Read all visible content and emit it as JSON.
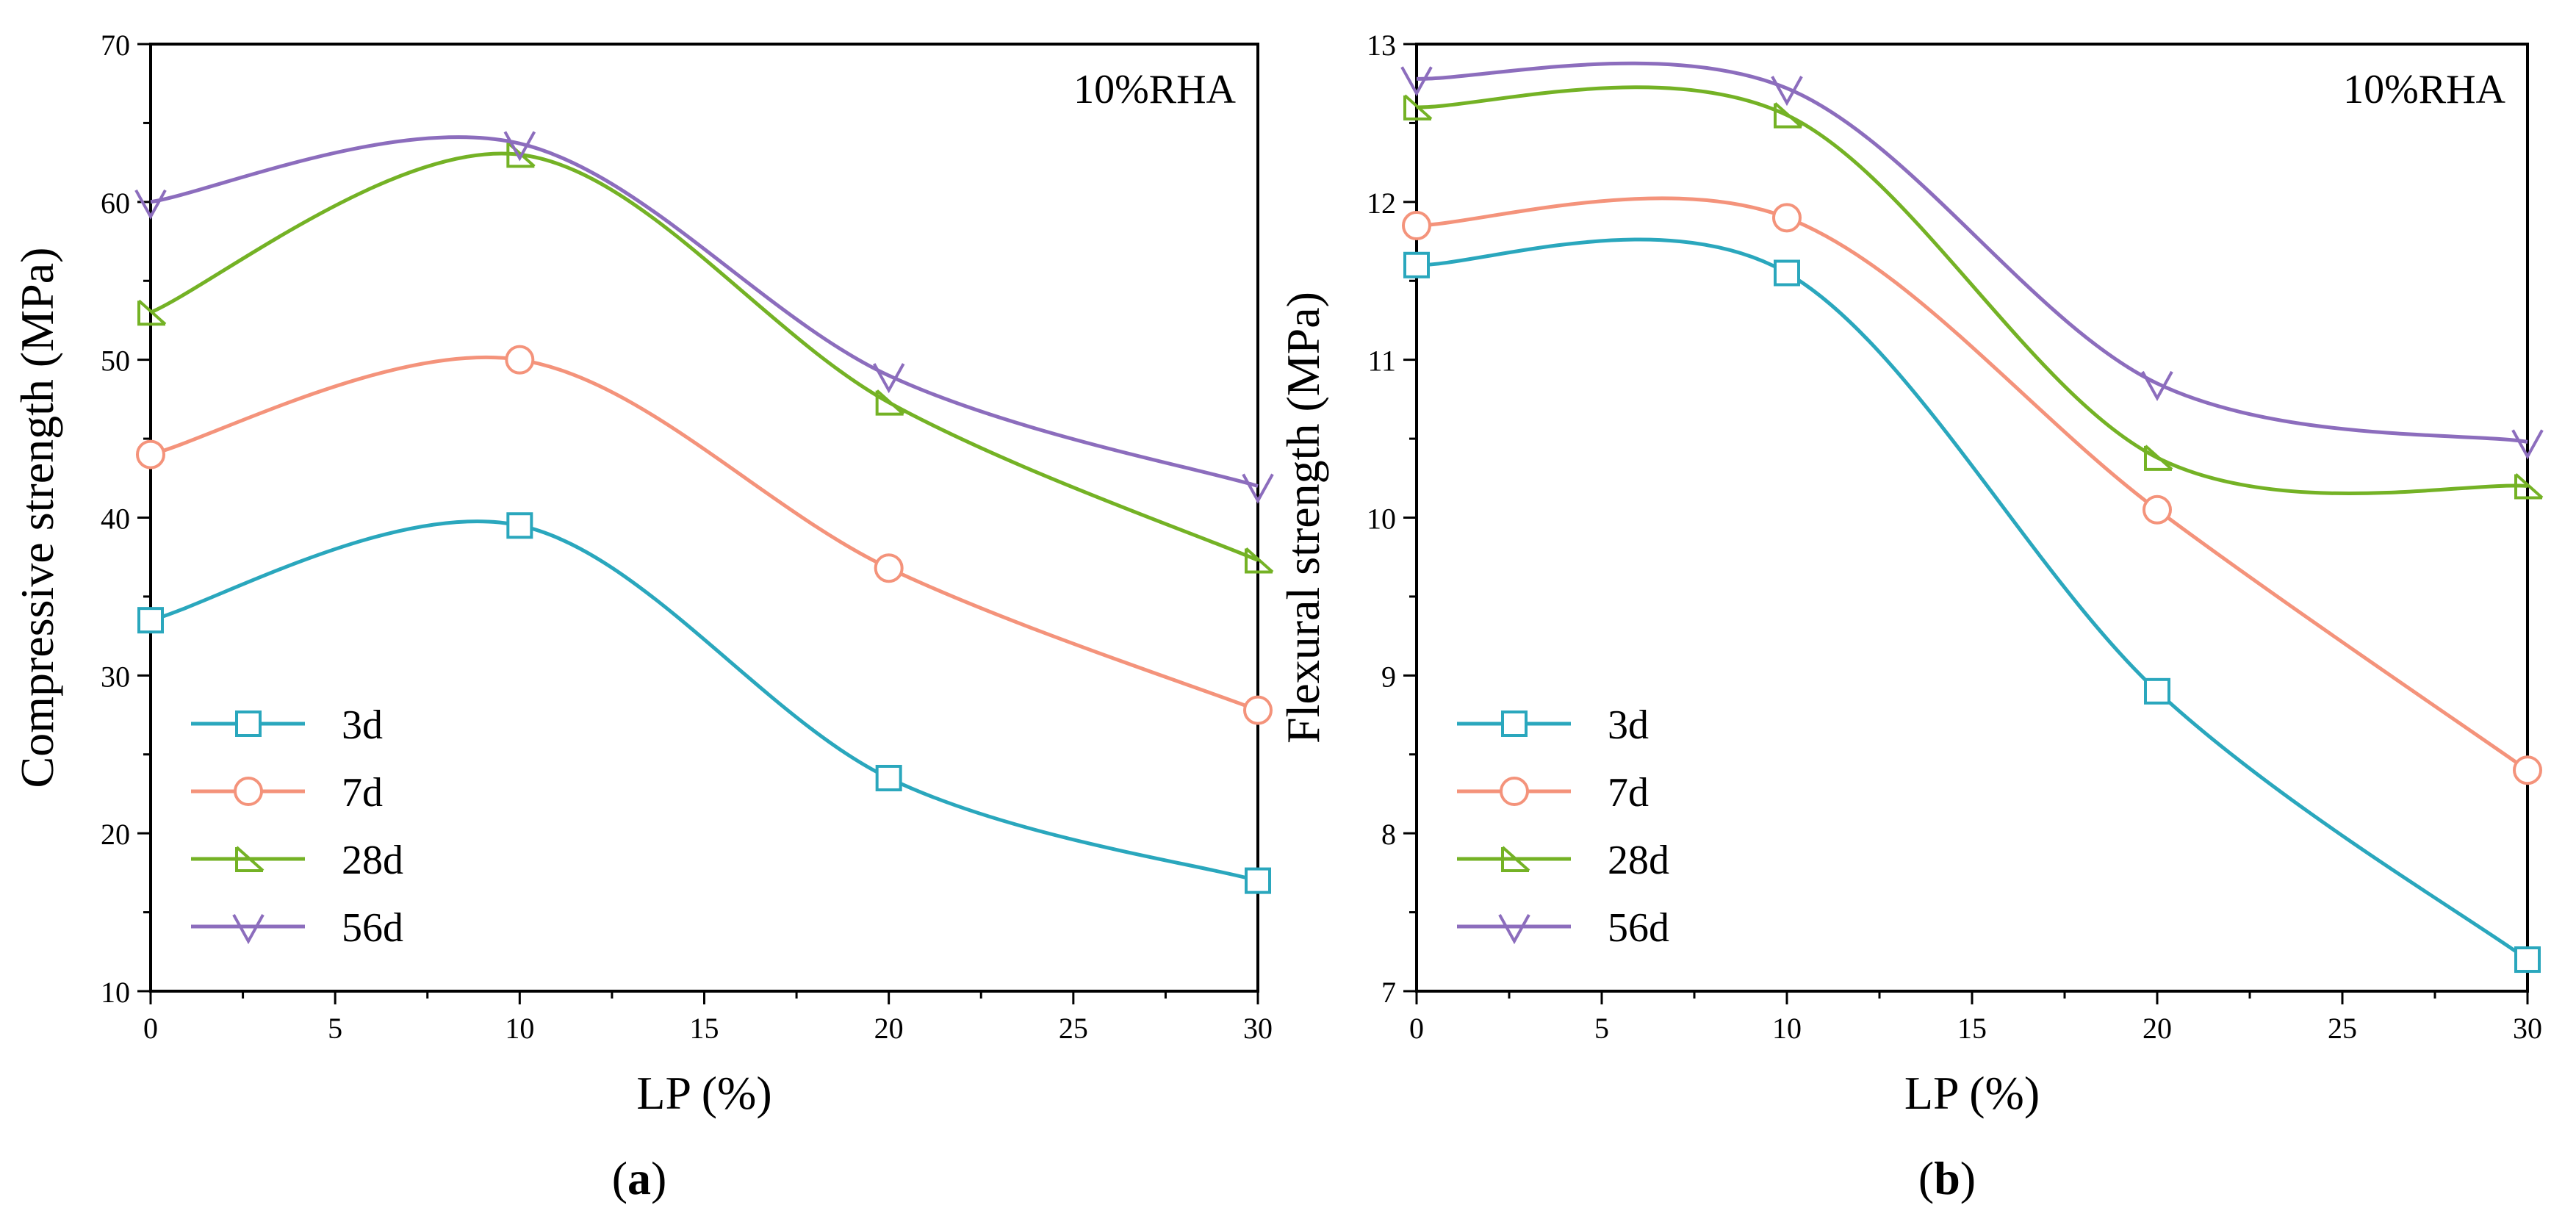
{
  "chart_data": [
    {
      "type": "line",
      "panel": "a",
      "caption": "(a)",
      "caption_letter": "a",
      "annotation": "10%RHA",
      "xlabel": "LP (%)",
      "ylabel": "Compressive strength (MPa)",
      "x": [
        0,
        10,
        20,
        30
      ],
      "xlim": [
        0,
        30
      ],
      "ylim": [
        10,
        70
      ],
      "xticks": [
        0,
        5,
        10,
        15,
        20,
        25,
        30
      ],
      "yticks": [
        10,
        20,
        30,
        40,
        50,
        60,
        70
      ],
      "series": [
        {
          "name": "3d",
          "marker": "square",
          "color": "#2aa7bd",
          "values": [
            33.5,
            39.5,
            23.5,
            17.0
          ]
        },
        {
          "name": "7d",
          "marker": "circle",
          "color": "#f4937b",
          "values": [
            44.0,
            50.0,
            36.8,
            27.8
          ]
        },
        {
          "name": "28d",
          "marker": "triangle-right",
          "color": "#74b225",
          "values": [
            53.0,
            63.0,
            47.3,
            37.3
          ]
        },
        {
          "name": "56d",
          "marker": "triangle-down",
          "color": "#8c6dbd",
          "values": [
            60.0,
            63.7,
            49.0,
            42.0
          ]
        }
      ],
      "legend_position": "lower-left"
    },
    {
      "type": "line",
      "panel": "b",
      "caption": "(b)",
      "caption_letter": "b",
      "annotation": "10%RHA",
      "xlabel": "LP (%)",
      "ylabel": "Flexural strength (MPa)",
      "x": [
        0,
        10,
        20,
        30
      ],
      "xlim": [
        0,
        30
      ],
      "ylim": [
        7,
        13
      ],
      "xticks": [
        0,
        5,
        10,
        15,
        20,
        25,
        30
      ],
      "yticks": [
        7,
        8,
        9,
        10,
        11,
        12,
        13
      ],
      "series": [
        {
          "name": "3d",
          "marker": "square",
          "color": "#2aa7bd",
          "values": [
            11.6,
            11.55,
            8.9,
            7.2
          ]
        },
        {
          "name": "7d",
          "marker": "circle",
          "color": "#f4937b",
          "values": [
            11.85,
            11.9,
            10.05,
            8.4
          ]
        },
        {
          "name": "28d",
          "marker": "triangle-right",
          "color": "#74b225",
          "values": [
            12.6,
            12.55,
            10.38,
            10.2
          ]
        },
        {
          "name": "56d",
          "marker": "triangle-down",
          "color": "#8c6dbd",
          "values": [
            12.78,
            12.72,
            10.85,
            10.48
          ]
        }
      ],
      "legend_position": "lower-left"
    }
  ]
}
